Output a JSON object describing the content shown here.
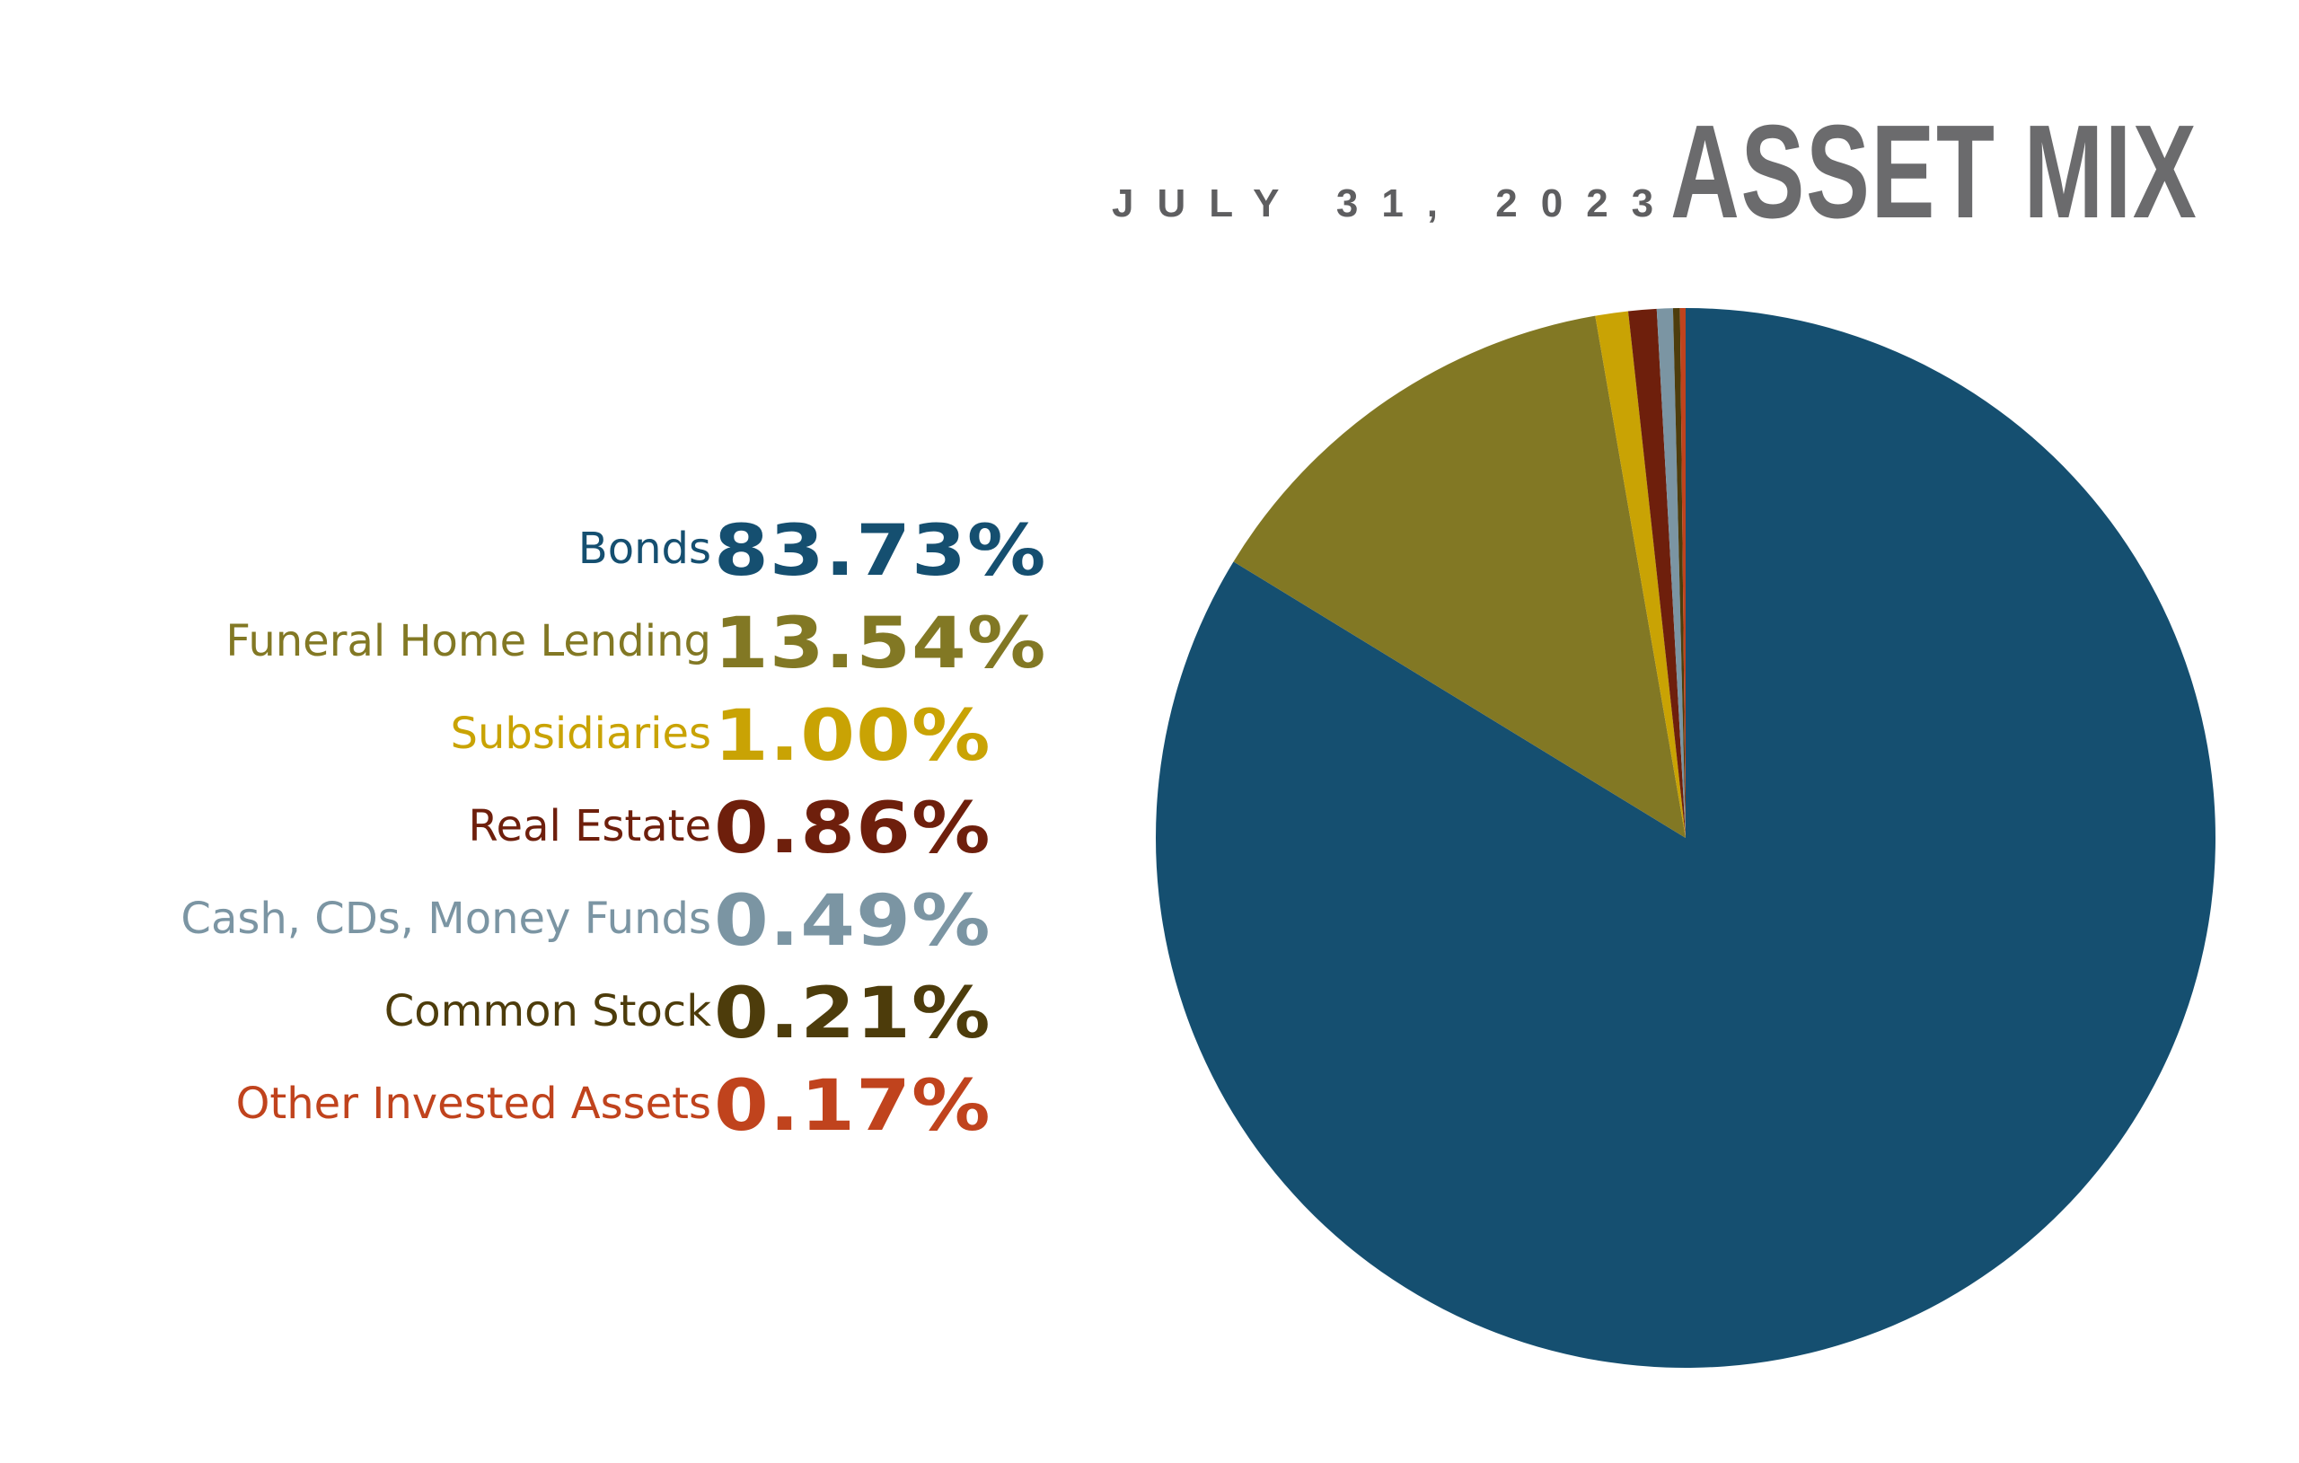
{
  "header": {
    "title": "ASSET MIX",
    "date": "JULY 31, 2023"
  },
  "chart_data": {
    "type": "pie",
    "title": "ASSET MIX",
    "subtitle": "JULY 31, 2023",
    "legend_position": "left",
    "slices": [
      {
        "label": "Bonds",
        "value": 83.73,
        "display": "83.73%",
        "color": "#154f70"
      },
      {
        "label": "Funeral Home Lending",
        "value": 13.54,
        "display": "13.54%",
        "color": "#827824"
      },
      {
        "label": "Subsidiaries",
        "value": 1.0,
        "display": "1.00%",
        "color": "#c9a304"
      },
      {
        "label": "Real Estate",
        "value": 0.86,
        "display": "0.86%",
        "color": "#6e1f0c"
      },
      {
        "label": "Cash, CDs, Money Funds",
        "value": 0.49,
        "display": "0.49%",
        "color": "#7b95a3"
      },
      {
        "label": "Common Stock",
        "value": 0.21,
        "display": "0.21%",
        "color": "#4d3c0b"
      },
      {
        "label": "Other Invested Assets",
        "value": 0.17,
        "display": "0.17%",
        "color": "#c0431d"
      }
    ]
  }
}
